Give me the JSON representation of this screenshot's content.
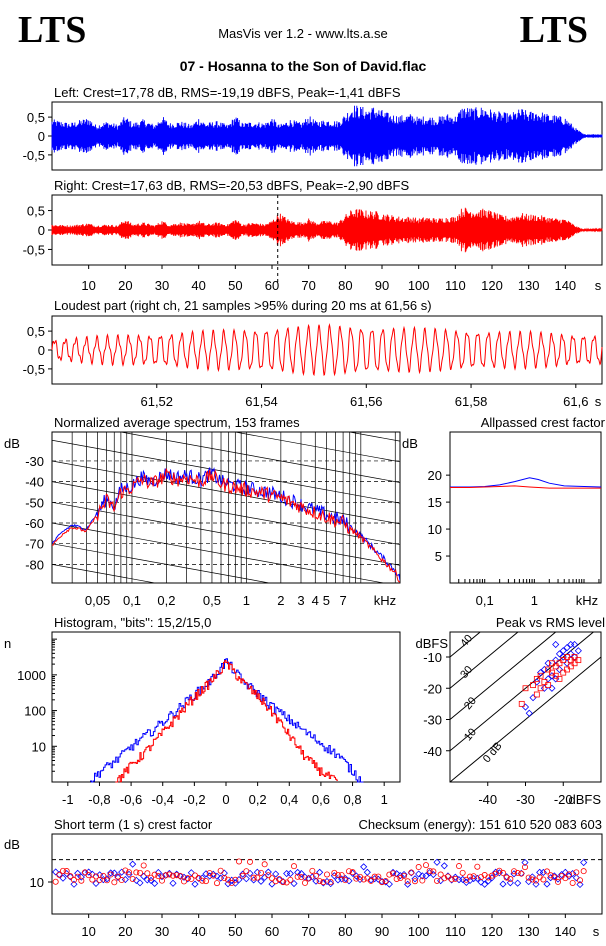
{
  "header": {
    "brand_left": "LTS",
    "brand_right": "LTS",
    "app": "MasVis ver 1.2 - www.lts.a.se",
    "file": "07 - Hosanna to the Son of David.flac"
  },
  "colors": {
    "left": "#0000ff",
    "right": "#ff0000",
    "axis": "#000000",
    "bg": "#ffffff"
  },
  "chart_data": [
    {
      "id": "left-wave",
      "type": "area",
      "title": "Left: Crest=17,78 dB, RMS=-19,19 dBFS, Peak=-1,41 dBFS",
      "yticks": [
        "0,5",
        "0",
        "-0,5"
      ],
      "ytick_values": [
        0.5,
        0,
        -0.5
      ],
      "ylim": [
        -0.9,
        0.9
      ],
      "xlim": [
        0,
        150
      ],
      "series": [
        {
          "color": "#0000ff",
          "t": [
            0,
            5,
            10,
            12,
            15,
            18,
            20,
            22,
            25,
            28,
            30,
            32,
            35,
            38,
            40,
            42,
            45,
            48,
            50,
            52,
            55,
            58,
            60,
            62,
            65,
            68,
            70,
            72,
            75,
            78,
            80,
            82,
            84,
            86,
            88,
            90,
            92,
            95,
            98,
            100,
            102,
            105,
            108,
            110,
            112,
            115,
            118,
            120,
            122,
            125,
            128,
            130,
            132,
            135,
            138,
            140,
            143,
            145
          ],
          "amp": [
            0.45,
            0.35,
            0.5,
            0.3,
            0.4,
            0.3,
            0.55,
            0.35,
            0.45,
            0.3,
            0.55,
            0.35,
            0.4,
            0.3,
            0.5,
            0.35,
            0.4,
            0.3,
            0.55,
            0.35,
            0.4,
            0.35,
            0.5,
            0.3,
            0.45,
            0.35,
            0.55,
            0.4,
            0.45,
            0.4,
            0.6,
            0.85,
            0.8,
            0.75,
            0.8,
            0.7,
            0.6,
            0.55,
            0.6,
            0.5,
            0.55,
            0.5,
            0.6,
            0.55,
            0.8,
            0.75,
            0.8,
            0.7,
            0.65,
            0.6,
            0.75,
            0.65,
            0.7,
            0.6,
            0.55,
            0.5,
            0.2,
            0.05
          ]
        }
      ]
    },
    {
      "id": "right-wave",
      "type": "area",
      "title": "Right: Crest=17,63 dB, RMS=-20,53 dBFS, Peak=-2,90 dBFS",
      "yticks": [
        "0,5",
        "0",
        "-0,5"
      ],
      "ytick_values": [
        0.5,
        0,
        -0.5
      ],
      "ylim": [
        -0.9,
        0.9
      ],
      "xlim": [
        0,
        150
      ],
      "marker_s": 61.56,
      "xticks": [
        "10",
        "20",
        "30",
        "40",
        "50",
        "60",
        "70",
        "80",
        "90",
        "100",
        "110",
        "120",
        "130",
        "140",
        "s"
      ],
      "xtick_values": [
        10,
        20,
        30,
        40,
        50,
        60,
        70,
        80,
        90,
        100,
        110,
        120,
        130,
        140
      ],
      "series": [
        {
          "color": "#ff0000",
          "t": [
            0,
            5,
            10,
            12,
            15,
            18,
            20,
            22,
            25,
            28,
            30,
            32,
            35,
            38,
            40,
            42,
            45,
            48,
            50,
            52,
            55,
            58,
            60,
            62,
            65,
            68,
            70,
            72,
            75,
            78,
            80,
            82,
            84,
            86,
            88,
            90,
            92,
            95,
            98,
            100,
            102,
            105,
            108,
            110,
            112,
            115,
            118,
            120,
            122,
            125,
            128,
            130,
            132,
            135,
            138,
            140,
            143,
            145
          ],
          "amp": [
            0.15,
            0.12,
            0.18,
            0.12,
            0.15,
            0.12,
            0.3,
            0.15,
            0.2,
            0.12,
            0.25,
            0.15,
            0.2,
            0.15,
            0.25,
            0.15,
            0.2,
            0.15,
            0.3,
            0.15,
            0.2,
            0.15,
            0.25,
            0.45,
            0.25,
            0.2,
            0.3,
            0.2,
            0.25,
            0.2,
            0.4,
            0.55,
            0.55,
            0.5,
            0.5,
            0.45,
            0.4,
            0.35,
            0.35,
            0.3,
            0.35,
            0.3,
            0.35,
            0.35,
            0.6,
            0.55,
            0.55,
            0.5,
            0.4,
            0.35,
            0.45,
            0.4,
            0.4,
            0.35,
            0.3,
            0.3,
            0.1,
            0.02
          ]
        }
      ]
    },
    {
      "id": "loudest-part",
      "type": "line",
      "title": "Loudest part (right ch, 21 samples >95% during 20 ms at 61,56 s)",
      "yticks": [
        "0,5",
        "0",
        "-0,5"
      ],
      "ytick_values": [
        0.5,
        0,
        -0.5
      ],
      "ylim": [
        -0.9,
        0.9
      ],
      "xlim": [
        61.5,
        61.605
      ],
      "xticks": [
        "61,52",
        "61,54",
        "61,56",
        "61,58",
        "61,6",
        "s"
      ],
      "xtick_values": [
        61.52,
        61.54,
        61.56,
        61.58,
        61.6
      ],
      "cycles": 52,
      "series": [
        {
          "color": "#ff0000",
          "amp_start": 0.25,
          "amp_peak": 0.6,
          "amp_end": 0.35
        }
      ]
    },
    {
      "id": "avg-spectrum",
      "type": "line",
      "title": "Normalized average spectrum, 153 frames",
      "ylabel": "dB",
      "xlabel": "kHz",
      "yticks": [
        "-30",
        "-40",
        "-50",
        "-60",
        "-70",
        "-80"
      ],
      "ytick_values": [
        -30,
        -40,
        -50,
        -60,
        -70,
        -80
      ],
      "ylim": [
        -89,
        -16
      ],
      "xlim_khz": [
        0.02,
        22
      ],
      "xticks": [
        "0,05",
        "0,1",
        "0,2",
        "0,5",
        "1",
        "2",
        "3",
        "4",
        "5",
        "7",
        "kHz"
      ],
      "xtick_values": [
        0.05,
        0.1,
        0.2,
        0.5,
        1,
        2,
        3,
        4,
        5,
        7
      ],
      "series": [
        {
          "color": "#0000ff",
          "f": [
            0.02,
            0.025,
            0.03,
            0.04,
            0.05,
            0.06,
            0.07,
            0.08,
            0.1,
            0.12,
            0.15,
            0.2,
            0.25,
            0.3,
            0.4,
            0.5,
            0.6,
            0.8,
            1,
            1.5,
            2,
            3,
            4,
            5,
            7,
            10,
            15,
            20,
            22
          ],
          "db": [
            -70,
            -64,
            -61,
            -63,
            -55,
            -48,
            -52,
            -44,
            -42,
            -38,
            -40,
            -36,
            -38,
            -37,
            -39,
            -36,
            -40,
            -42,
            -43,
            -45,
            -47,
            -51,
            -54,
            -56,
            -59,
            -66,
            -76,
            -83,
            -87
          ]
        },
        {
          "color": "#ff0000",
          "f": [
            0.02,
            0.025,
            0.03,
            0.04,
            0.05,
            0.06,
            0.07,
            0.08,
            0.1,
            0.12,
            0.15,
            0.2,
            0.25,
            0.3,
            0.4,
            0.5,
            0.6,
            0.8,
            1,
            1.5,
            2,
            3,
            4,
            5,
            7,
            10,
            15,
            20,
            22
          ],
          "db": [
            -71,
            -65,
            -62,
            -64,
            -56,
            -49,
            -53,
            -45,
            -43,
            -39,
            -41,
            -37,
            -39,
            -38,
            -40,
            -37,
            -41,
            -43,
            -44,
            -46,
            -48,
            -52,
            -55,
            -57,
            -60,
            -67,
            -77,
            -84,
            -88
          ]
        }
      ]
    },
    {
      "id": "allpassed-crest",
      "type": "line",
      "title": "Allpassed crest factor",
      "ylabel": "dB",
      "xlabel": "kHz",
      "yticks": [
        "20",
        "15",
        "10",
        "5"
      ],
      "ytick_values": [
        20,
        15,
        10,
        5
      ],
      "ylim": [
        0,
        28
      ],
      "xticks": [
        "0,1",
        "1",
        "kHz"
      ],
      "xtick_values": [
        0.1,
        1
      ],
      "series": [
        {
          "color": "#0000ff",
          "f": [
            0.02,
            0.05,
            0.1,
            0.2,
            0.4,
            0.8,
            1.2,
            2,
            4,
            10,
            22
          ],
          "db": [
            17.8,
            17.8,
            17.9,
            18.2,
            18.8,
            19.5,
            19.2,
            18.5,
            18.0,
            17.9,
            17.8
          ]
        },
        {
          "color": "#ff0000",
          "f": [
            0.02,
            0.05,
            0.1,
            0.2,
            0.4,
            0.8,
            1.2,
            2,
            4,
            10,
            22
          ],
          "db": [
            17.7,
            17.7,
            17.8,
            17.9,
            18.0,
            17.8,
            17.7,
            17.6,
            17.6,
            17.6,
            17.6
          ]
        }
      ]
    },
    {
      "id": "histogram",
      "type": "line",
      "title": "Histogram, \"bits\": 15,2/15,0",
      "ylabel": "n",
      "yticks": [
        "1000",
        "100",
        "10"
      ],
      "ytick_values": [
        1000,
        100,
        10
      ],
      "ylog": true,
      "xlim": [
        -1.1,
        1.1
      ],
      "xticks": [
        "-1",
        "-0,8",
        "-0,6",
        "-0,4",
        "-0,2",
        "0",
        "0,2",
        "0,4",
        "0,6",
        "0,8",
        "1"
      ],
      "xtick_values": [
        -1,
        -0.8,
        -0.6,
        -0.4,
        -0.2,
        0,
        0.2,
        0.4,
        0.6,
        0.8,
        1
      ],
      "series": [
        {
          "color": "#0000ff",
          "x": [
            -0.86,
            -0.8,
            -0.7,
            -0.6,
            -0.5,
            -0.4,
            -0.3,
            -0.2,
            -0.1,
            0,
            0.1,
            0.2,
            0.3,
            0.4,
            0.5,
            0.6,
            0.7,
            0.8,
            0.86
          ],
          "n": [
            1,
            2,
            4,
            10,
            22,
            50,
            120,
            300,
            700,
            2500,
            700,
            300,
            120,
            55,
            25,
            12,
            6,
            2,
            1
          ]
        },
        {
          "color": "#ff0000",
          "x": [
            -0.7,
            -0.6,
            -0.5,
            -0.4,
            -0.3,
            -0.2,
            -0.1,
            0,
            0.1,
            0.2,
            0.3,
            0.4,
            0.5,
            0.6,
            0.7
          ],
          "n": [
            1,
            3,
            8,
            25,
            80,
            250,
            650,
            2200,
            650,
            250,
            80,
            20,
            5,
            2,
            1
          ]
        }
      ]
    },
    {
      "id": "peak-vs-rms",
      "type": "scatter",
      "title": "Peak vs RMS level",
      "ylabel": "dBFS",
      "xlabel": "dBFS",
      "yticks": [
        "-10",
        "-20",
        "-30",
        "-40"
      ],
      "ytick_values": [
        -10,
        -20,
        -30,
        -40
      ],
      "xticks": [
        "-40",
        "-30",
        "-20",
        "dBFS"
      ],
      "xtick_values": [
        -40,
        -30,
        -20
      ],
      "xlim": [
        -50,
        -10
      ],
      "ylim": [
        -50,
        -2
      ],
      "crest_lines": [
        "40",
        "30",
        "20",
        "10",
        "0 dB"
      ],
      "crest_values": [
        40,
        30,
        20,
        10,
        0
      ],
      "series": [
        {
          "color": "#0000ff",
          "points": [
            [
              -30,
              -26
            ],
            [
              -28,
              -23
            ],
            [
              -27,
              -18
            ],
            [
              -25,
              -14
            ],
            [
              -24,
              -12
            ],
            [
              -23,
              -16
            ],
            [
              -22,
              -11
            ],
            [
              -22,
              -6
            ],
            [
              -21,
              -9
            ],
            [
              -20,
              -8
            ],
            [
              -19,
              -7
            ],
            [
              -18,
              -6
            ],
            [
              -17,
              -6
            ],
            [
              -26,
              -15
            ],
            [
              -24,
              -17
            ],
            [
              -20,
              -10
            ],
            [
              -19,
              -12
            ],
            [
              -23,
              -20
            ],
            [
              -21,
              -14
            ],
            [
              -18,
              -9
            ],
            [
              -17,
              -10
            ],
            [
              -25,
              -20
            ],
            [
              -22,
              -17
            ],
            [
              -29,
              -28
            ],
            [
              -16,
              -8
            ]
          ]
        },
        {
          "color": "#ff0000",
          "points": [
            [
              -31,
              -25
            ],
            [
              -30,
              -20
            ],
            [
              -28,
              -19
            ],
            [
              -27,
              -17
            ],
            [
              -26,
              -16
            ],
            [
              -25,
              -18
            ],
            [
              -24,
              -14
            ],
            [
              -23,
              -12
            ],
            [
              -22,
              -13
            ],
            [
              -21,
              -12
            ],
            [
              -20,
              -11
            ],
            [
              -19,
              -10
            ],
            [
              -19,
              -14
            ],
            [
              -18,
              -11
            ],
            [
              -17,
              -10
            ],
            [
              -22,
              -16
            ],
            [
              -24,
              -19
            ],
            [
              -21,
              -17
            ],
            [
              -20,
              -15
            ],
            [
              -18,
              -13
            ],
            [
              -26,
              -20
            ],
            [
              -27,
              -22
            ],
            [
              -23,
              -15
            ],
            [
              -17,
              -12
            ],
            [
              -16,
              -11
            ]
          ]
        }
      ]
    },
    {
      "id": "short-term-crest",
      "type": "scatter",
      "title": "Short term (1 s) crest factor",
      "ylabel": "dB",
      "yticks": [
        "10"
      ],
      "ytick_values": [
        10
      ],
      "ylim": [
        0,
        25
      ],
      "xlim": [
        0,
        150
      ],
      "guide_db": 17,
      "xticks": [
        "10",
        "20",
        "30",
        "40",
        "50",
        "60",
        "70",
        "80",
        "90",
        "100",
        "110",
        "120",
        "130",
        "140",
        "s"
      ],
      "xtick_values": [
        10,
        20,
        30,
        40,
        50,
        60,
        70,
        80,
        90,
        100,
        110,
        120,
        130,
        140
      ],
      "series": [
        {
          "color": "#0000ff",
          "avg": 11.2
        },
        {
          "color": "#ff0000",
          "avg": 11.6
        }
      ]
    }
  ],
  "checksum": {
    "label": "Checksum (energy):",
    "value": "151 610 520 083 603"
  }
}
